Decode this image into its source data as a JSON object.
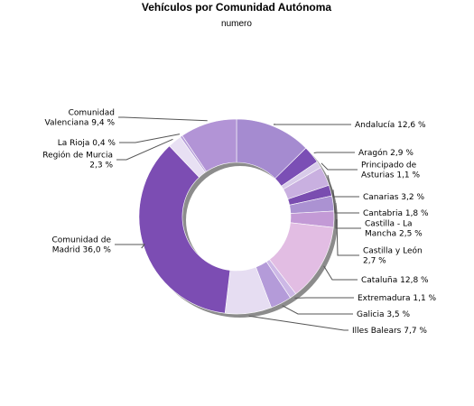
{
  "chart_data": {
    "type": "pie",
    "title": "Vehículos por Comunidad Autónoma",
    "subtitle": "numero",
    "style": "donut",
    "slices": [
      {
        "name": "Andalucía",
        "value": 12.6,
        "label": [
          "Andalucía 12,6 %"
        ],
        "color": "#a58bd0"
      },
      {
        "name": "Aragón",
        "value": 2.9,
        "label": [
          "Aragón 2,9 %"
        ],
        "color": "#7b4fb5"
      },
      {
        "name": "Principado de Asturias",
        "value": 1.1,
        "label": [
          "Principado de",
          "Asturias 1,1 %"
        ],
        "color": "#d8cbe9"
      },
      {
        "name": "Canarias",
        "value": 3.2,
        "label": [
          "Canarias 3,2 %"
        ],
        "color": "#c9b0e0"
      },
      {
        "name": "Cantabria",
        "value": 1.8,
        "label": [
          "Cantabria 1,8 %"
        ],
        "color": "#7a4db0"
      },
      {
        "name": "Castilla - La Mancha",
        "value": 2.5,
        "label": [
          "Castilla - La",
          "Mancha 2,5 %"
        ],
        "color": "#ab92d2"
      },
      {
        "name": "Castilla y León",
        "value": 2.7,
        "label": [
          "Castilla y León",
          "2,7 %"
        ],
        "color": "#c39ad6"
      },
      {
        "name": "Cataluña",
        "value": 12.8,
        "label": [
          "Cataluña 12,8 %"
        ],
        "color": "#e2bde3"
      },
      {
        "name": "Extremadura",
        "value": 1.1,
        "label": [
          "Extremadura 1,1 %"
        ],
        "color": "#cdb8e6"
      },
      {
        "name": "Galicia",
        "value": 3.5,
        "label": [
          "Galicia 3,5 %"
        ],
        "color": "#b49bd9"
      },
      {
        "name": "Illes Balears",
        "value": 7.7,
        "label": [
          "Illes Balears 7,7 %"
        ],
        "color": "#e6ddf2"
      },
      {
        "name": "Comunidad de Madrid",
        "value": 36.0,
        "label": [
          "Comunidad de",
          "Madrid 36,0 %"
        ],
        "color": "#7c4db3"
      },
      {
        "name": "Región de Murcia",
        "value": 2.3,
        "label": [
          "Región de Murcia",
          "2,3 %"
        ],
        "color": "#e8e0f3"
      },
      {
        "name": "La Rioja",
        "value": 0.4,
        "label": [
          "La Rioja 0,4 %"
        ],
        "color": "#b8a0da"
      },
      {
        "name": "Comunidad Valenciana",
        "value": 9.4,
        "label": [
          "Comunidad",
          "Valenciana 9,4 %"
        ],
        "color": "#b294d6"
      }
    ]
  }
}
